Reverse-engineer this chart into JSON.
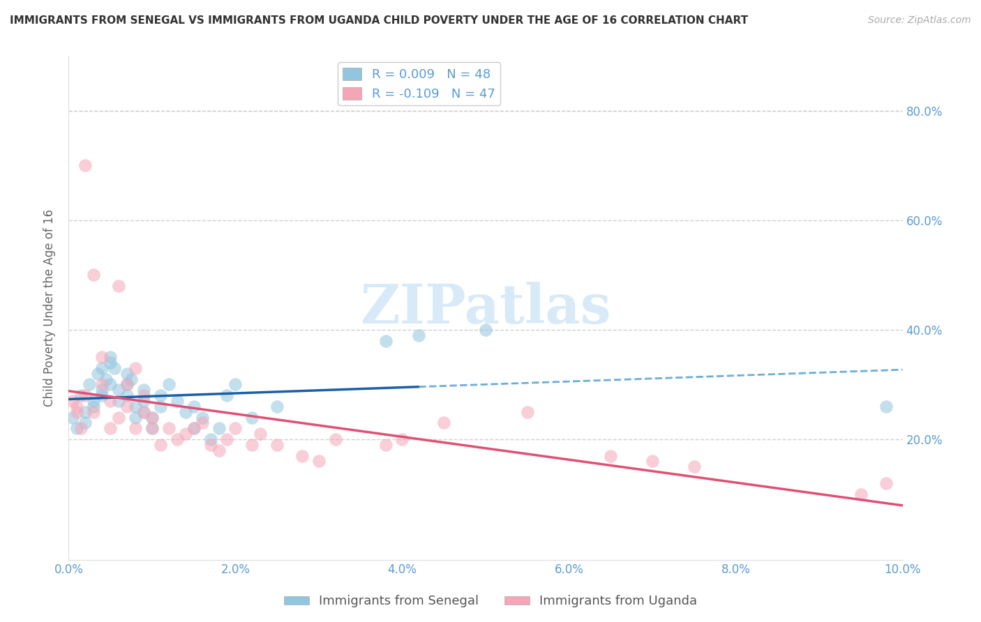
{
  "title": "IMMIGRANTS FROM SENEGAL VS IMMIGRANTS FROM UGANDA CHILD POVERTY UNDER THE AGE OF 16 CORRELATION CHART",
  "source": "Source: ZipAtlas.com",
  "ylabel": "Child Poverty Under the Age of 16",
  "legend_label1": "Immigrants from Senegal",
  "legend_label2": "Immigrants from Uganda",
  "r1": 0.009,
  "n1": 48,
  "r2": -0.109,
  "n2": 47,
  "xlim": [
    0.0,
    0.1
  ],
  "ylim": [
    -0.02,
    0.9
  ],
  "xtick_vals": [
    0.0,
    0.02,
    0.04,
    0.06,
    0.08,
    0.1
  ],
  "xtick_labels": [
    "0.0%",
    "2.0%",
    "4.0%",
    "6.0%",
    "8.0%",
    "10.0%"
  ],
  "yticks_right": [
    0.2,
    0.4,
    0.6,
    0.8
  ],
  "ytick_right_labels": [
    "20.0%",
    "40.0%",
    "60.0%",
    "80.0%"
  ],
  "color_blue": "#92c5de",
  "color_pink": "#f4a6b8",
  "trendline_blue": "#1a5fa8",
  "trendline_blue_dash": "#6baed6",
  "trendline_pink": "#e05075",
  "tick_color": "#5b9bd5",
  "grid_color": "#d0d0d0",
  "watermark_color": "#d8eaf8",
  "senegal_x": [
    0.0005,
    0.001,
    0.0015,
    0.002,
    0.002,
    0.0025,
    0.003,
    0.003,
    0.0035,
    0.004,
    0.004,
    0.004,
    0.0045,
    0.005,
    0.005,
    0.005,
    0.0055,
    0.006,
    0.006,
    0.007,
    0.007,
    0.007,
    0.0075,
    0.008,
    0.008,
    0.009,
    0.009,
    0.009,
    0.01,
    0.01,
    0.011,
    0.011,
    0.012,
    0.013,
    0.014,
    0.015,
    0.015,
    0.016,
    0.017,
    0.018,
    0.019,
    0.02,
    0.022,
    0.025,
    0.038,
    0.042,
    0.05,
    0.098
  ],
  "senegal_y": [
    0.24,
    0.22,
    0.28,
    0.25,
    0.23,
    0.3,
    0.27,
    0.26,
    0.32,
    0.28,
    0.33,
    0.29,
    0.31,
    0.35,
    0.34,
    0.3,
    0.33,
    0.27,
    0.29,
    0.32,
    0.3,
    0.28,
    0.31,
    0.26,
    0.24,
    0.27,
    0.25,
    0.29,
    0.22,
    0.24,
    0.26,
    0.28,
    0.3,
    0.27,
    0.25,
    0.22,
    0.26,
    0.24,
    0.2,
    0.22,
    0.28,
    0.3,
    0.24,
    0.26,
    0.38,
    0.39,
    0.4,
    0.26
  ],
  "uganda_x": [
    0.0005,
    0.001,
    0.001,
    0.0015,
    0.002,
    0.002,
    0.003,
    0.003,
    0.004,
    0.004,
    0.005,
    0.005,
    0.006,
    0.006,
    0.007,
    0.007,
    0.008,
    0.008,
    0.009,
    0.009,
    0.01,
    0.01,
    0.011,
    0.012,
    0.013,
    0.014,
    0.015,
    0.016,
    0.017,
    0.018,
    0.019,
    0.02,
    0.022,
    0.023,
    0.025,
    0.028,
    0.03,
    0.032,
    0.038,
    0.04,
    0.045,
    0.055,
    0.065,
    0.07,
    0.075,
    0.095,
    0.098
  ],
  "uganda_y": [
    0.27,
    0.26,
    0.25,
    0.22,
    0.28,
    0.7,
    0.25,
    0.5,
    0.3,
    0.35,
    0.22,
    0.27,
    0.24,
    0.48,
    0.26,
    0.3,
    0.22,
    0.33,
    0.25,
    0.28,
    0.22,
    0.24,
    0.19,
    0.22,
    0.2,
    0.21,
    0.22,
    0.23,
    0.19,
    0.18,
    0.2,
    0.22,
    0.19,
    0.21,
    0.19,
    0.17,
    0.16,
    0.2,
    0.19,
    0.2,
    0.23,
    0.25,
    0.17,
    0.16,
    0.15,
    0.1,
    0.12
  ]
}
